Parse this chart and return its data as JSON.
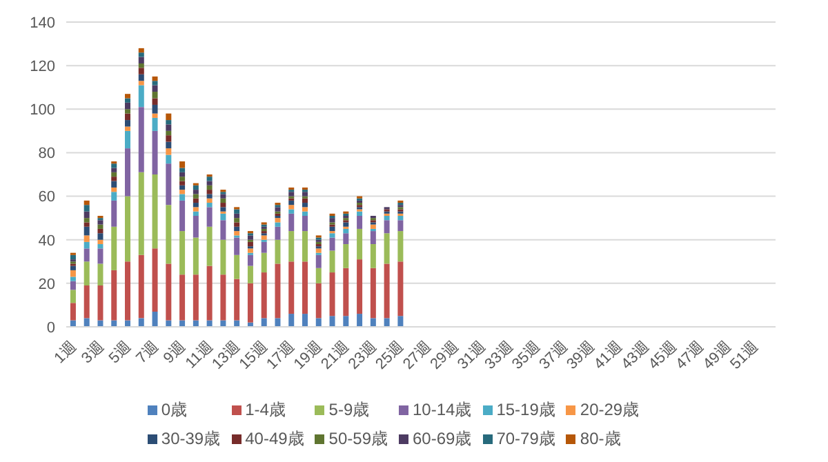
{
  "chart_data": {
    "type": "bar",
    "stacked": true,
    "categories": [
      "1週",
      null,
      "3週",
      null,
      "5週",
      null,
      "7週",
      null,
      "9週",
      null,
      "11週",
      null,
      "13週",
      null,
      "15週",
      null,
      "17週",
      null,
      "19週",
      null,
      "21週",
      null,
      "23週",
      null,
      "25週",
      null,
      "27週",
      null,
      "29週",
      null,
      "31週",
      null,
      "33週",
      null,
      "35週",
      null,
      "37週",
      null,
      "39週",
      null,
      "41週",
      null,
      "43週",
      null,
      "45週",
      null,
      "47週",
      null,
      "49週",
      null,
      "51週",
      null
    ],
    "ylim": [
      0,
      140
    ],
    "yticks": [
      0,
      20,
      40,
      60,
      80,
      100,
      120,
      140
    ],
    "grid": "y",
    "legend": "bottom",
    "series": [
      {
        "name": "0歳",
        "color": "#4f81bd",
        "values": [
          3,
          4,
          3,
          3,
          3,
          4,
          7,
          3,
          3,
          3,
          3,
          3,
          3,
          2,
          4,
          4,
          6,
          6,
          4,
          5,
          5,
          6,
          4,
          4,
          5,
          null,
          null,
          null,
          null,
          null,
          null,
          null,
          null,
          null,
          null,
          null,
          null,
          null,
          null,
          null,
          null,
          null,
          null,
          null,
          null,
          null,
          null,
          null,
          null,
          null,
          null,
          null
        ]
      },
      {
        "name": "1-4歳",
        "color": "#c0504d",
        "values": [
          8,
          15,
          16,
          23,
          27,
          29,
          29,
          26,
          21,
          21,
          25,
          21,
          19,
          18,
          21,
          25,
          24,
          24,
          16,
          20,
          22,
          25,
          23,
          25,
          25,
          null,
          null,
          null,
          null,
          null,
          null,
          null,
          null,
          null,
          null,
          null,
          null,
          null,
          null,
          null,
          null,
          null,
          null,
          null,
          null,
          null,
          null,
          null,
          null,
          null,
          null,
          null
        ]
      },
      {
        "name": "5-9歳",
        "color": "#9bbb59",
        "values": [
          6,
          11,
          10,
          20,
          30,
          38,
          34,
          27,
          20,
          17,
          18,
          16,
          11,
          8,
          9,
          11,
          14,
          14,
          7,
          10,
          11,
          14,
          11,
          14,
          14,
          null,
          null,
          null,
          null,
          null,
          null,
          null,
          null,
          null,
          null,
          null,
          null,
          null,
          null,
          null,
          null,
          null,
          null,
          null,
          null,
          null,
          null,
          null,
          null,
          null,
          null,
          null
        ]
      },
      {
        "name": "10-14歳",
        "color": "#8064a2",
        "values": [
          4,
          6,
          7,
          12,
          22,
          30,
          20,
          19,
          14,
          10,
          9,
          9,
          8,
          5,
          5,
          6,
          8,
          7,
          6,
          6,
          5,
          6,
          6,
          6,
          5,
          null,
          null,
          null,
          null,
          null,
          null,
          null,
          null,
          null,
          null,
          null,
          null,
          null,
          null,
          null,
          null,
          null,
          null,
          null,
          null,
          null,
          null,
          null,
          null,
          null,
          null,
          null
        ]
      },
      {
        "name": "15-19歳",
        "color": "#4bacc6",
        "values": [
          2,
          3,
          2,
          4,
          8,
          10,
          6,
          4,
          3,
          2,
          2,
          3,
          1,
          1,
          1,
          2,
          2,
          2,
          1,
          2,
          2,
          2,
          1,
          2,
          2,
          null,
          null,
          null,
          null,
          null,
          null,
          null,
          null,
          null,
          null,
          null,
          null,
          null,
          null,
          null,
          null,
          null,
          null,
          null,
          null,
          null,
          null,
          null,
          null,
          null,
          null,
          null
        ]
      },
      {
        "name": "20-29歳",
        "color": "#f79646",
        "values": [
          3,
          3,
          2,
          2,
          2,
          2,
          2,
          3,
          2,
          2,
          2,
          1,
          2,
          2,
          2,
          2,
          2,
          2,
          2,
          1,
          1,
          1,
          2,
          1,
          1,
          null,
          null,
          null,
          null,
          null,
          null,
          null,
          null,
          null,
          null,
          null,
          null,
          null,
          null,
          null,
          null,
          null,
          null,
          null,
          null,
          null,
          null,
          null,
          null,
          null,
          null,
          null
        ]
      },
      {
        "name": "30-39歳",
        "color": "#2c4d75",
        "values": [
          2,
          4,
          3,
          3,
          3,
          3,
          4,
          3,
          2,
          2,
          2,
          2,
          2,
          1,
          1,
          1,
          2,
          2,
          1,
          2,
          2,
          1,
          1,
          1,
          1,
          null,
          null,
          null,
          null,
          null,
          null,
          null,
          null,
          null,
          null,
          null,
          null,
          null,
          null,
          null,
          null,
          null,
          null,
          null,
          null,
          null,
          null,
          null,
          null,
          null,
          null,
          null
        ]
      },
      {
        "name": "40-49歳",
        "color": "#772c2a",
        "values": [
          1,
          2,
          2,
          2,
          3,
          3,
          3,
          3,
          2,
          2,
          2,
          2,
          2,
          2,
          1,
          1,
          1,
          2,
          1,
          1,
          1,
          1,
          1,
          1,
          1,
          null,
          null,
          null,
          null,
          null,
          null,
          null,
          null,
          null,
          null,
          null,
          null,
          null,
          null,
          null,
          null,
          null,
          null,
          null,
          null,
          null,
          null,
          null,
          null,
          null,
          null,
          null
        ]
      },
      {
        "name": "50-59歳",
        "color": "#5f7530",
        "values": [
          1,
          2,
          2,
          2,
          2,
          2,
          3,
          2,
          2,
          2,
          2,
          2,
          2,
          1,
          1,
          1,
          1,
          1,
          1,
          1,
          1,
          1,
          1,
          0,
          1,
          null,
          null,
          null,
          null,
          null,
          null,
          null,
          null,
          null,
          null,
          null,
          null,
          null,
          null,
          null,
          null,
          null,
          null,
          null,
          null,
          null,
          null,
          null,
          null,
          null,
          null,
          null
        ]
      },
      {
        "name": "60-69歳",
        "color": "#4d3b62",
        "values": [
          1,
          3,
          2,
          2,
          3,
          3,
          3,
          3,
          2,
          2,
          2,
          2,
          2,
          2,
          1,
          2,
          2,
          2,
          1,
          2,
          1,
          1,
          1,
          1,
          1,
          null,
          null,
          null,
          null,
          null,
          null,
          null,
          null,
          null,
          null,
          null,
          null,
          null,
          null,
          null,
          null,
          null,
          null,
          null,
          null,
          null,
          null,
          null,
          null,
          null,
          null,
          null
        ]
      },
      {
        "name": "70-79歳",
        "color": "#276a7c",
        "values": [
          2,
          3,
          1,
          2,
          2,
          2,
          2,
          2,
          2,
          2,
          2,
          1,
          2,
          1,
          1,
          1,
          1,
          1,
          1,
          1,
          1,
          1,
          0,
          0,
          1,
          null,
          null,
          null,
          null,
          null,
          null,
          null,
          null,
          null,
          null,
          null,
          null,
          null,
          null,
          null,
          null,
          null,
          null,
          null,
          null,
          null,
          null,
          null,
          null,
          null,
          null,
          null
        ]
      },
      {
        "name": "80-歳",
        "color": "#b65708",
        "values": [
          1,
          2,
          1,
          1,
          2,
          2,
          2,
          3,
          3,
          1,
          1,
          1,
          1,
          1,
          1,
          1,
          1,
          1,
          1,
          1,
          1,
          1,
          0,
          0,
          1,
          null,
          null,
          null,
          null,
          null,
          null,
          null,
          null,
          null,
          null,
          null,
          null,
          null,
          null,
          null,
          null,
          null,
          null,
          null,
          null,
          null,
          null,
          null,
          null,
          null,
          null,
          null
        ]
      }
    ]
  }
}
